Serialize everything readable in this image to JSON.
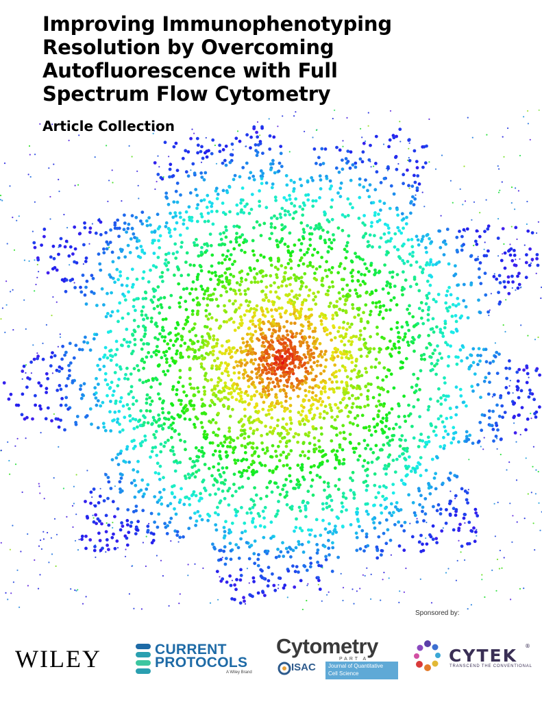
{
  "header": {
    "title_lines": [
      "Improving Immunophenotyping",
      "Resolution by Overcoming",
      "Autofluorescence with Full",
      "Spectrum Flow Cytometry"
    ],
    "subtitle": "Article Collection"
  },
  "footer": {
    "sponsored_by": "Sponsored by:",
    "wiley": "WILEY",
    "current_protocols": {
      "line1": "CURRENT",
      "line2": "PROTOCOLS",
      "tagline": "A Wiley Brand"
    },
    "cytometry": {
      "name": "Cytometry",
      "part": "PART A",
      "isac": "ISAC",
      "journal_line1": "Journal of Quantitative",
      "journal_line2": "Cell Science"
    },
    "cytek": {
      "name": "CYTEK",
      "registered": "®",
      "tagline": "TRANSCEND THE CONVENTIONAL"
    }
  }
}
